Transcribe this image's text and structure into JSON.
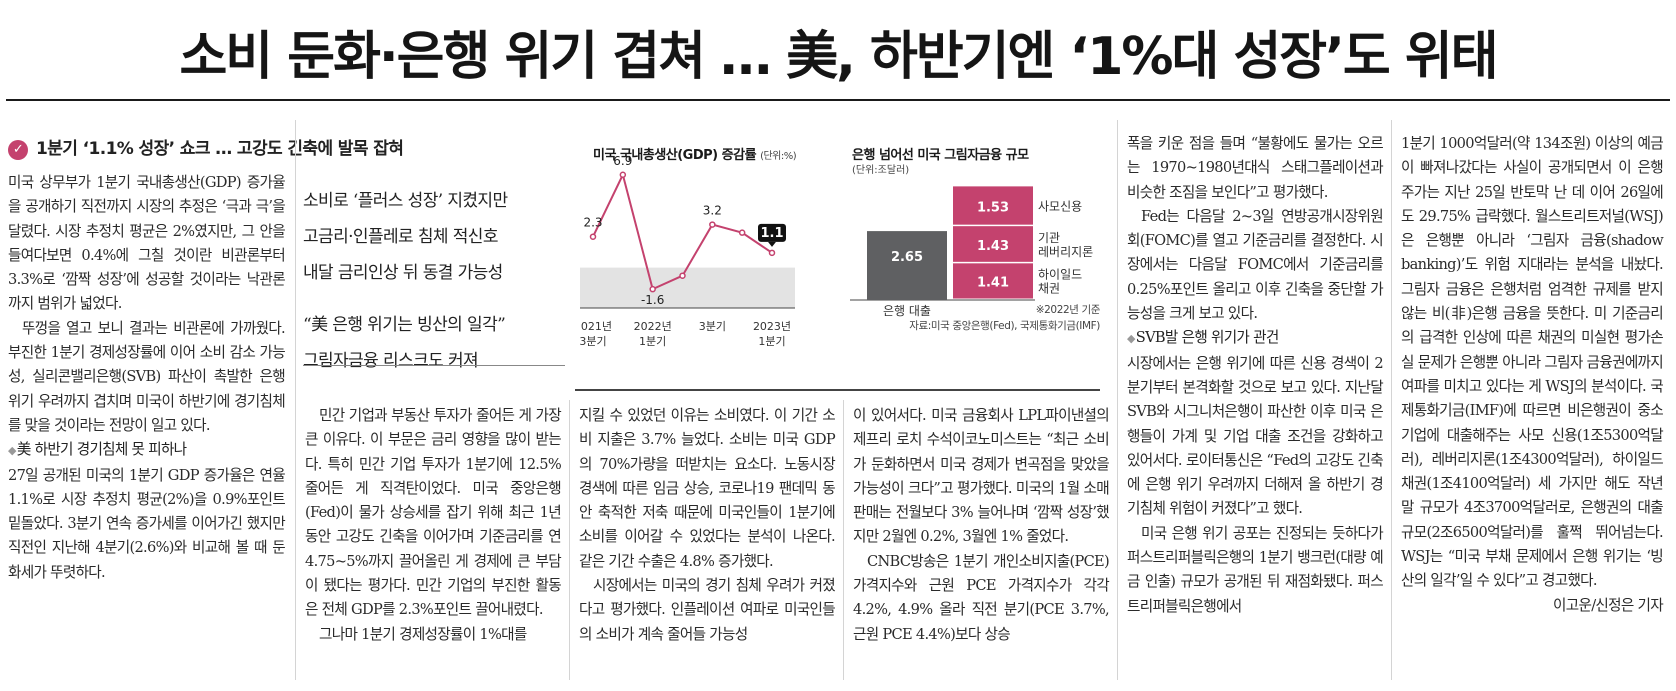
{
  "headline": "소비 둔화·은행 위기 겹쳐 … 美, 하반기엔 ‘1%대 성장’도 위태",
  "section_head": "1분기 ‘1.1% 성장’ 쇼크 … 고강도 긴축에 발목 잡혀",
  "pull_quotes": [
    "소비로 ‘플러스 성장’ 지켰지만",
    "고금리·인플레로 침체 적신호",
    "내달 금리인상 뒤 동결 가능성",
    "“美 은행 위기는 빙산의 일각”",
    "그림자금융 리스크도 커져"
  ],
  "col1": [
    {
      "cls": "",
      "text": "미국 상무부가 1분기 국내총생산(GDP) 증가율을 공개하기 직전까지 시장의 추정은 ‘극과 극’을 달렸다. 시장 추정치 평균은 2%였지만, 그 안을 들여다보면 0.4%에 그칠 것이란 비관론부터 3.3%로 ‘깜짝 성장’에 성공할 것이라는 낙관론까지 범위가 넓었다."
    },
    {
      "cls": "ind",
      "text": "뚜껑을 열고 보니 결과는 비관론에 가까웠다. 부진한 1분기 경제성장률에 이어 소비 감소 가능성, 실리콘밸리은행(SVB) 파산이 촉발한 은행 위기 우려까지 겹치며 미국이 하반기에 경기침체를 맞을 것이라는 전망이 일고 있다."
    },
    {
      "cls": "sub",
      "text": "美 하반기 경기침체 못 피하나"
    },
    {
      "cls": "",
      "text": "27일 공개된 미국의 1분기 GDP 증가율은 연율 1.1%로 시장 추정치 평균(2%)을 0.9%포인트 밑돌았다. 3분기 연속 증가세를 이어가긴 했지만 직전인 지난해 4분기(2.6%)와 비교해 볼 때 둔화세가 뚜렷하다."
    }
  ],
  "col2": [
    {
      "cls": "ind",
      "text": "민간 기업과 부동산 투자가 줄어든 게 가장 큰 이유다. 이 부문은 금리 영향을 많이 받는다. 특히 민간 기업 투자가 1분기에 12.5% 줄어든 게 직격탄이었다. 미국 중앙은행(Fed)이 물가 상승세를 잡기 위해 최근 1년 동안 고강도 긴축을 이어가며 기준금리를 연 4.75~5%까지 끌어올린 게 경제에 큰 부담이 됐다는 평가다. 민간 기업의 부진한 활동은 전체 GDP를 2.3%포인트 끌어내렸다."
    },
    {
      "cls": "ind",
      "text": "그나마 1분기 경제성장률이 1%대를"
    }
  ],
  "col3": [
    {
      "cls": "",
      "text": "지킬 수 있었던 이유는 소비였다. 이 기간 소비 지출은 3.7% 늘었다. 소비는 미국 GDP의 70%가량을 떠받치는 요소다. 노동시장 경색에 따른 임금 상승, 코로나19 팬데믹 동안 축적한 저축 때문에 미국인들이 1분기에 소비를 이어갈 수 있었다는 분석이 나온다. 같은 기간 수출은 4.8% 증가했다."
    },
    {
      "cls": "ind",
      "text": "시장에서는 미국의 경기 침체 우려가 커졌다고 평가했다. 인플레이션 여파로 미국인들의 소비가 계속 줄어들 가능성"
    }
  ],
  "col4": [
    {
      "cls": "",
      "text": "이 있어서다. 미국 금융회사 LPL파이낸셜의 제프리 로치 수석이코노미스트는 “최근 소비가 둔화하면서 미국 경제가 변곡점을 맞았을 가능성이 크다”고 평가했다. 미국의 1월 소매판매는 전월보다 3% 늘어나며 ‘깜짝 성장’했지만 2월엔 0.2%, 3월엔 1% 줄었다."
    },
    {
      "cls": "ind",
      "text": "CNBC방송은 1분기 개인소비지출(PCE) 가격지수와 근원 PCE 가격지수가 각각 4.2%, 4.9% 올라 직전 분기(PCE 3.7%, 근원 PCE 4.4%)보다 상승"
    }
  ],
  "col5": [
    {
      "cls": "",
      "text": "폭을 키운 점을 들며 “불황에도 물가는 오르는 1970~1980년대식 스태그플레이션과 비슷한 조짐을 보인다”고 평가했다."
    },
    {
      "cls": "ind",
      "text": "Fed는 다음달 2~3일 연방공개시장위원회(FOMC)를 열고 기준금리를 결정한다. 시장에서는 다음달 FOMC에서 기준금리를 0.25%포인트 올리고 이후 긴축을 중단할 가능성을 크게 보고 있다."
    },
    {
      "cls": "sub",
      "text": "SVB발 은행 위기가 관건"
    },
    {
      "cls": "",
      "text": "시장에서는 은행 위기에 따른 신용 경색이 2분기부터 본격화할 것으로 보고 있다. 지난달 SVB와 시그니처은행이 파산한 이후 미국 은행들이 가계 및 기업 대출 조건을 강화하고 있어서다. 로이터통신은 “Fed의 고강도 긴축에 은행 위기 우려까지 더해져 올 하반기 경기침체 위험이 커졌다”고 했다."
    },
    {
      "cls": "ind",
      "text": "미국 은행 위기 공포는 진정되는 듯하다가 퍼스트리퍼블릭은행의 1분기 뱅크런(대량 예금 인출) 규모가 공개된 뒤 재점화됐다. 퍼스트리퍼블릭은행에서"
    }
  ],
  "col6": [
    {
      "cls": "",
      "text": "1분기 1000억달러(약 134조원) 이상의 예금이 빠져나갔다는 사실이 공개되면서 이 은행 주가는 지난 25일 반토막 난 데 이어 26일에도 29.75% 급락했다. 월스트리트저널(WSJ)은 은행뿐 아니라 ‘그림자 금융(shadow banking)’도 위험 지대라는 분석을 내놨다. 그림자 금융은 은행처럼 엄격한 규제를 받지 않는 비(非)은행 금융을 뜻한다. 미 기준금리의 급격한 인상에 따른 채권의 미실현 평가손실 문제가 은행뿐 아니라 그림자 금융권에까지 여파를 미치고 있다는 게 WSJ의 분석이다. 국제통화기금(IMF)에 따르면 비은행권이 중소기업에 대출해주는 사모 신용(1조5300억달러), 레버리지론(1조4300억달러), 하이일드 채권(1조4100억달러) 세 가지만 해도 작년 말 규모가 4조3700억달러로, 은행권의 대출 규모(2조6500억달러)를 훌쩍 뛰어넘는다. WSJ는 “미국 부채 문제에서 은행 위기는 ‘빙산의 일각’일 수 있다”고 경고했다."
    },
    {
      "cls": "right",
      "text": "이고운/신정은 기자"
    }
  ],
  "chart_data": [
    {
      "type": "line",
      "title": "미국 국내총생산(GDP) 증감률",
      "unit": "(단위:%)",
      "x": [
        "2021년 3분기",
        "2021년 4분기",
        "2022년 1분기",
        "2022년 2분기",
        "2022년 3분기",
        "2022년 4분기",
        "2023년 1분기"
      ],
      "x_tick_labels": [
        {
          "line1": "2021년",
          "line2": "3분기"
        },
        {
          "line1": "2022년",
          "line2": "1분기"
        },
        {
          "line1": "3분기",
          "line2": ""
        },
        {
          "line1": "2023년",
          "line2": "1분기"
        }
      ],
      "values": [
        2.3,
        6.9,
        -1.6,
        -0.6,
        3.2,
        2.6,
        1.1
      ],
      "labeled_points": [
        {
          "index": 0,
          "label": "2.3"
        },
        {
          "index": 1,
          "label": "6.9"
        },
        {
          "index": 2,
          "label": "-1.6"
        },
        {
          "index": 4,
          "label": "3.2"
        },
        {
          "index": 6,
          "label": "1.1",
          "highlight": true
        }
      ],
      "ylim": [
        -3,
        8
      ],
      "line_color": "#c4426e",
      "negative_band_color": "#e3e3e3"
    },
    {
      "type": "bar",
      "title": "은행 넘어선 미국 그림자금융 규모",
      "unit": "(단위:조달러)",
      "categories": [
        "은행 대출",
        "그림자금융"
      ],
      "bank": {
        "label": "은행 대출",
        "value": 2.65,
        "value_label": "2.65",
        "color": "#5f6062"
      },
      "shadow_segments": [
        {
          "name": "하이일드 채권",
          "value": 1.41,
          "value_label": "1.41"
        },
        {
          "name": "기관 레버리지론",
          "value": 1.43,
          "value_label": "1.43"
        },
        {
          "name": "사모신용",
          "value": 1.53,
          "value_label": "1.53"
        }
      ],
      "segment_color": "#c4426e",
      "note_date": "※2022년 기준",
      "source": "자료:미국 중앙은행(Fed), 국제통화기금(IMF)"
    }
  ]
}
